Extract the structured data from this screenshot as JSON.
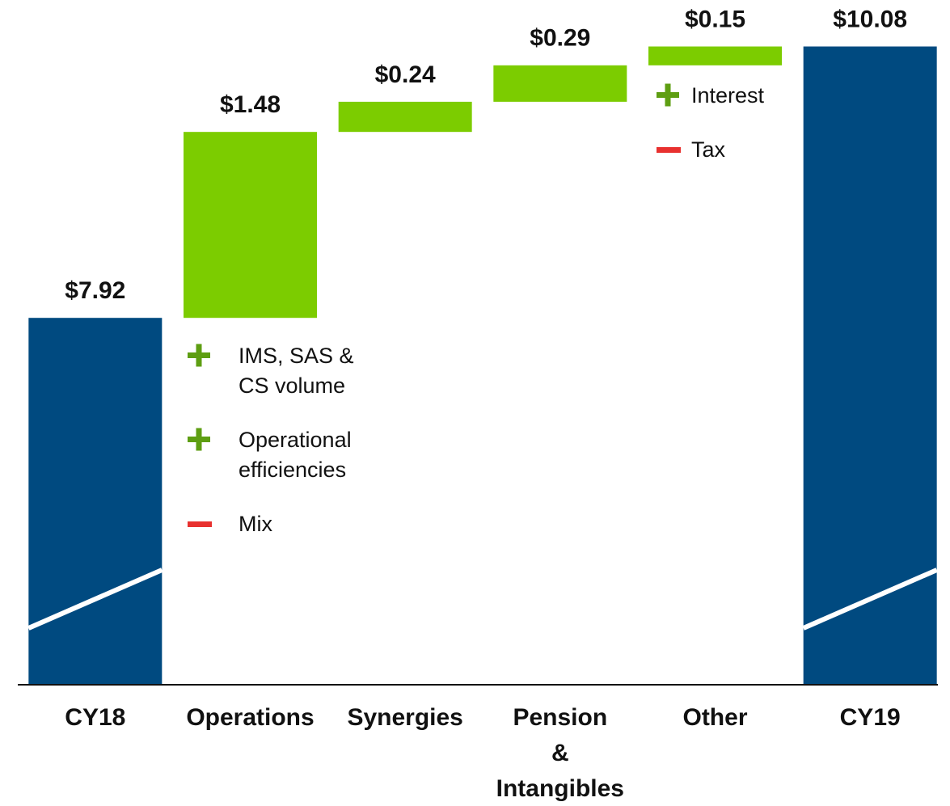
{
  "chart_data": {
    "type": "waterfall",
    "categories": [
      "CY18",
      "Operations",
      "Synergies",
      "Pension & Intangibles",
      "Other",
      "CY19"
    ],
    "measures": [
      "absolute",
      "relative",
      "relative",
      "relative",
      "relative",
      "total"
    ],
    "values": [
      7.92,
      1.48,
      0.24,
      0.29,
      0.15,
      10.08
    ],
    "value_labels": [
      "$7.92",
      "$1.48",
      "$0.24",
      "$0.29",
      "$0.15",
      "$10.08"
    ],
    "total_color": "#004a80",
    "increase_color": "#7ccc00",
    "ylim": [
      5.0,
      10.45
    ],
    "axis_break": true,
    "annotations": [
      {
        "category": 1,
        "items": [
          {
            "sign": "+",
            "text": "IMS, SAS & CS volume"
          },
          {
            "sign": "+",
            "text": "Operational efficiencies"
          },
          {
            "sign": "-",
            "text": "Mix"
          }
        ]
      },
      {
        "category": 4,
        "items": [
          {
            "sign": "+",
            "text": "Interest"
          },
          {
            "sign": "-",
            "text": "Tax"
          }
        ]
      }
    ],
    "plus_color": "#5e9e12",
    "minus_color": "#e8312f"
  }
}
